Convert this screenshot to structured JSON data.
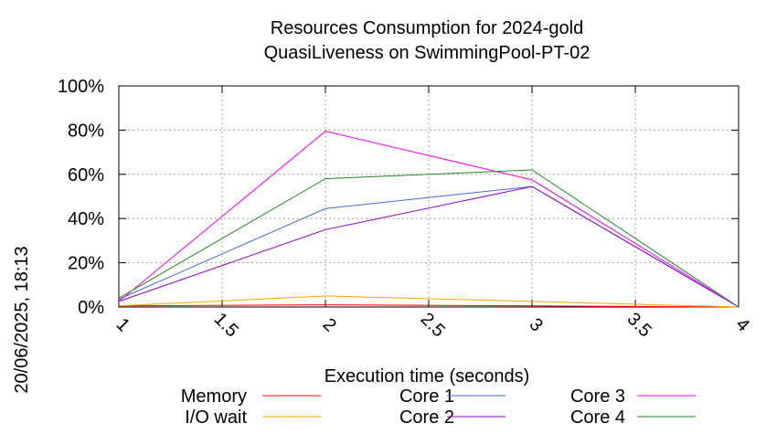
{
  "chart_data": {
    "type": "line",
    "title_line1": "Resources Consumption for 2024-gold",
    "title_line2": "QuasiLiveness on SwimmingPool-PT-02",
    "xlabel": "Execution time (seconds)",
    "ylabel": "",
    "side_label": "20/06/2025, 18:13",
    "xlim": [
      1,
      4
    ],
    "ylim": [
      0,
      100
    ],
    "x_ticks": [
      "1",
      "1.5",
      "2",
      "2.5",
      "3",
      "3.5",
      "4"
    ],
    "y_ticks": [
      "0%",
      "20%",
      "40%",
      "60%",
      "80%",
      "100%"
    ],
    "grid": true,
    "legend_position": "bottom",
    "x": [
      1,
      2,
      3,
      4
    ],
    "series": [
      {
        "name": "Memory",
        "color": "#ff0000",
        "values": [
          0.5,
          1.0,
          0.5,
          0
        ]
      },
      {
        "name": "I/O wait",
        "color": "#ffa500",
        "values": [
          0.5,
          5.0,
          2.5,
          0
        ]
      },
      {
        "name": "Core 1",
        "color": "#4169e1",
        "values": [
          3.5,
          44.5,
          54.5,
          0
        ]
      },
      {
        "name": "Core 2",
        "color": "#9400d3",
        "values": [
          2.5,
          35.0,
          54.5,
          0
        ]
      },
      {
        "name": "Core 3",
        "color": "#ff00ff",
        "values": [
          2.5,
          79.5,
          57.5,
          0
        ]
      },
      {
        "name": "Core 4",
        "color": "#228b22",
        "values": [
          4.0,
          58.0,
          62.0,
          0
        ]
      }
    ]
  }
}
